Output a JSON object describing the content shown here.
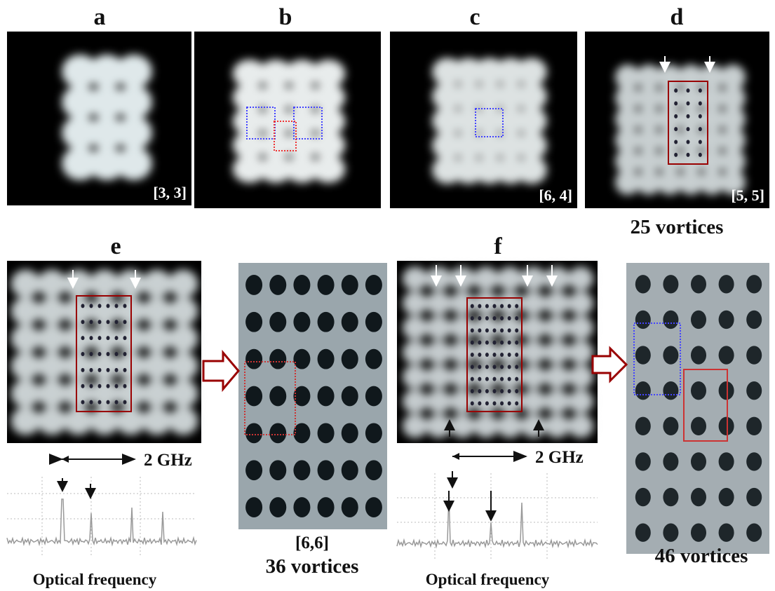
{
  "panels": [
    {
      "label": "a",
      "tag": "[3, 3]"
    },
    {
      "label": "b"
    },
    {
      "label": "c",
      "tag": "[6, 4]"
    },
    {
      "label": "d",
      "tag": "[5, 5]",
      "caption": "25 vortices"
    },
    {
      "label": "e",
      "spacing": "2 GHz",
      "axis": "Optical frequency",
      "zoom_tag": "[6,6]",
      "zoom_caption": "36 vortices"
    },
    {
      "label": "f",
      "spacing": "2 GHz",
      "axis": "Optical frequency",
      "zoom_caption": "46 vortices"
    }
  ]
}
